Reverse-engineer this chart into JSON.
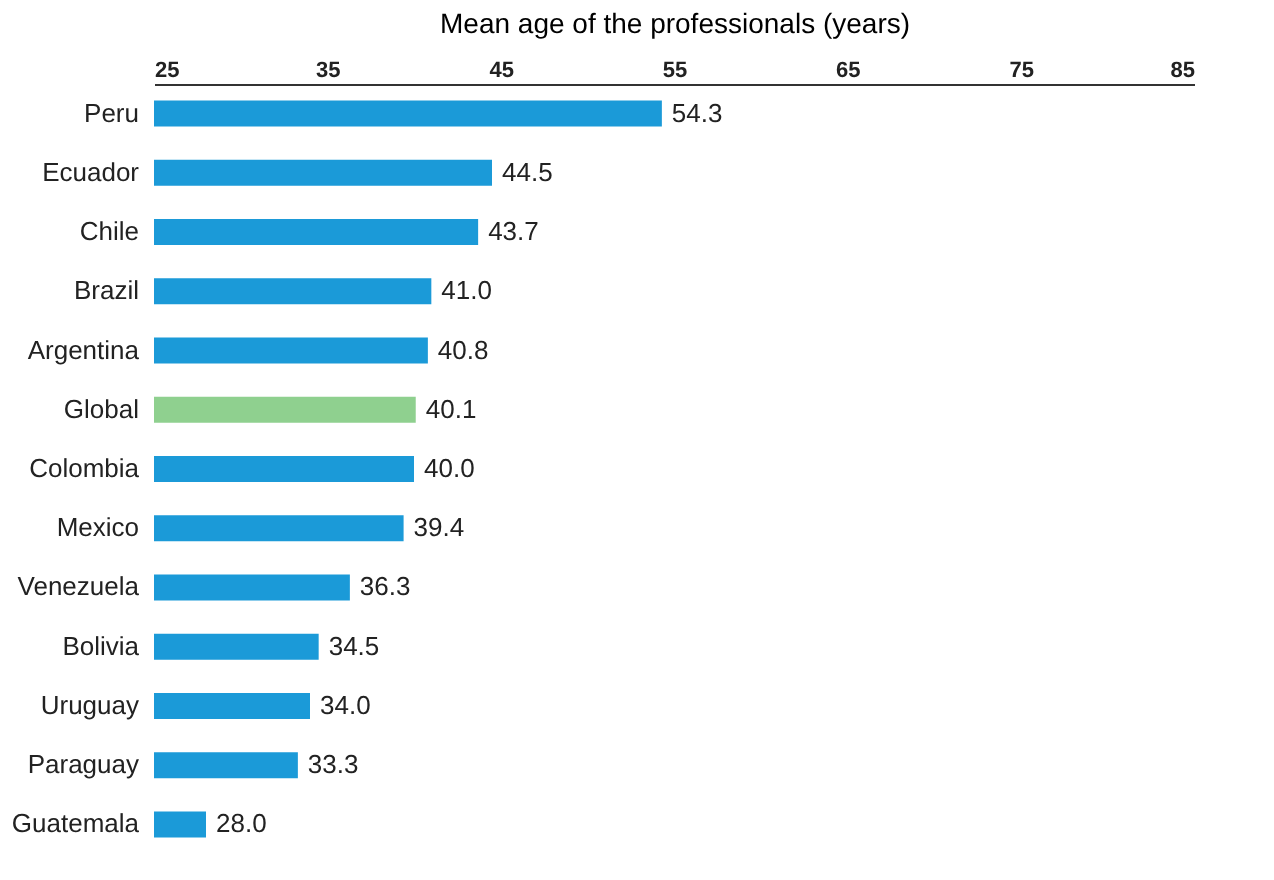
{
  "chart_data": {
    "type": "bar",
    "orientation": "horizontal",
    "xlabel": "Mean age of the professionals (years)",
    "categories": [
      "Peru",
      "Ecuador",
      "Chile",
      "Brazil",
      "Argentina",
      "Global",
      "Colombia",
      "Mexico",
      "Venezuela",
      "Bolivia",
      "Uruguay",
      "Paraguay",
      "Guatemala"
    ],
    "values": [
      54.3,
      44.5,
      43.7,
      41.0,
      40.8,
      40.1,
      40.0,
      39.4,
      36.3,
      34.5,
      34.0,
      33.3,
      28.0
    ],
    "value_labels": [
      "54.3",
      "44.5",
      "43.7",
      "41.0",
      "40.8",
      "40.1",
      "40.0",
      "39.4",
      "36.3",
      "34.5",
      "34.0",
      "33.3",
      "28.0"
    ],
    "colors": [
      "#1b9ad8",
      "#1b9ad8",
      "#1b9ad8",
      "#1b9ad8",
      "#1b9ad8",
      "#8fd08f",
      "#1b9ad8",
      "#1b9ad8",
      "#1b9ad8",
      "#1b9ad8",
      "#1b9ad8",
      "#1b9ad8",
      "#1b9ad8"
    ],
    "xlim": [
      25,
      85
    ],
    "xticks": [
      25,
      35,
      45,
      55,
      65,
      75,
      85
    ],
    "grid": false
  }
}
